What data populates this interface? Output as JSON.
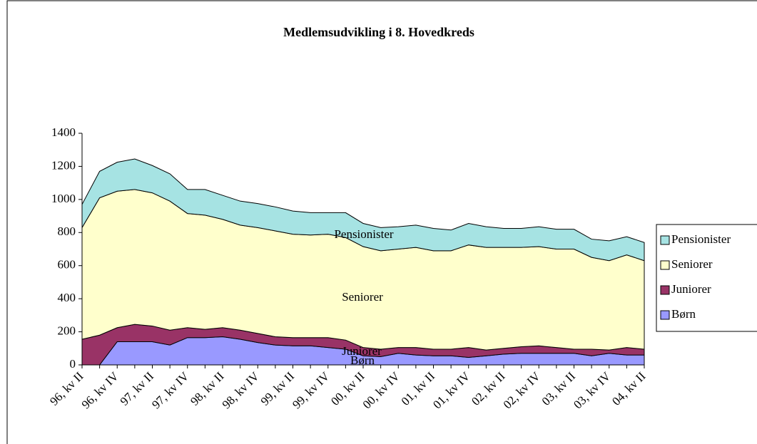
{
  "chart_data": {
    "type": "stacked-area",
    "title": "Medlemsudvikling i 8. Hovedkreds",
    "categories": [
      "96, kv II",
      null,
      "96, kv IV",
      null,
      "97, kv II",
      null,
      "97, kv IV",
      null,
      "98, kv II",
      null,
      "98, kv IV",
      null,
      "99, kv II",
      null,
      "99, kv IV",
      null,
      "00, kv II",
      null,
      "00, kv IV",
      null,
      "01, kv II",
      null,
      "01, kv IV",
      null,
      "02, kv II",
      null,
      "02, kv IV",
      null,
      "03, kv II",
      null,
      "03, kv IV",
      null,
      "04, kv II"
    ],
    "series": [
      {
        "name": "Børn",
        "color": "#9999ff",
        "values": [
          0,
          0,
          140,
          140,
          140,
          120,
          165,
          165,
          170,
          155,
          135,
          120,
          115,
          115,
          105,
          95,
          55,
          50,
          70,
          60,
          55,
          55,
          45,
          55,
          65,
          70,
          70,
          70,
          70,
          55,
          70,
          60,
          60
        ]
      },
      {
        "name": "Juniorer",
        "color": "#993366",
        "values": [
          155,
          180,
          85,
          105,
          95,
          90,
          60,
          50,
          55,
          55,
          55,
          50,
          50,
          50,
          60,
          55,
          50,
          45,
          35,
          45,
          40,
          40,
          60,
          35,
          35,
          40,
          45,
          35,
          25,
          40,
          20,
          45,
          35
        ]
      },
      {
        "name": "Seniorer",
        "color": "#ffffcc",
        "values": [
          675,
          830,
          825,
          815,
          805,
          780,
          690,
          690,
          655,
          635,
          640,
          640,
          625,
          620,
          625,
          620,
          610,
          595,
          595,
          605,
          595,
          595,
          620,
          620,
          610,
          600,
          600,
          595,
          605,
          555,
          540,
          560,
          535
        ]
      },
      {
        "name": "Pensionister",
        "color": "#a6e3e3",
        "values": [
          140,
          160,
          175,
          185,
          165,
          165,
          145,
          155,
          145,
          145,
          145,
          145,
          140,
          135,
          130,
          150,
          140,
          140,
          135,
          135,
          135,
          125,
          130,
          125,
          115,
          115,
          120,
          120,
          120,
          110,
          120,
          110,
          110
        ]
      }
    ],
    "ylim": [
      0,
      1400
    ],
    "yticks": [
      0,
      200,
      400,
      600,
      800,
      1000,
      1200,
      1400
    ],
    "legend": "right"
  }
}
